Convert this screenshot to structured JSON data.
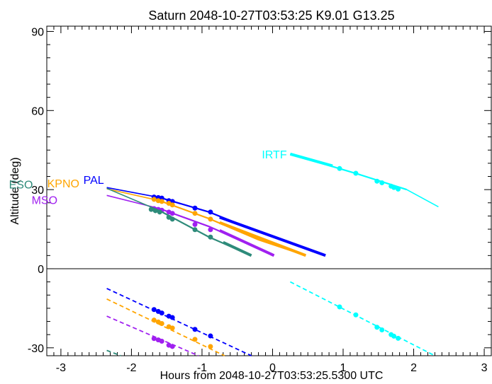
{
  "chart_data": {
    "type": "line",
    "title": "Saturn 2048-10-27T03:53:25  K9.01  G13.25",
    "xlabel": "Hours from 2048-10-27T03:53:25.5300 UTC",
    "ylabel": "Altitude (deg)",
    "xlim": [
      -3.2,
      3.1
    ],
    "ylim": [
      -33,
      92
    ],
    "xticks": [
      -3,
      -2,
      -1,
      0,
      1,
      2,
      3
    ],
    "yticks": [
      -30,
      0,
      30,
      60,
      90
    ],
    "zero_line": 0,
    "series": [
      {
        "name": "PAL",
        "color": "#0000ff",
        "thin": [
          [
            -2.35,
            30.8
          ],
          [
            -1.6,
            27.0
          ]
        ],
        "solid": [
          [
            -1.6,
            27.0
          ],
          [
            -0.9,
            21.5
          ],
          [
            -0.2,
            14.0
          ],
          [
            0.75,
            5.0
          ]
        ],
        "solid_thick": [
          [
            -0.75,
            19.5
          ],
          [
            0.75,
            5.0
          ]
        ],
        "dots_above": [
          [
            -1.68,
            27.2
          ],
          [
            -1.62,
            27.0
          ],
          [
            -1.57,
            26.8
          ],
          [
            -1.47,
            25.8
          ],
          [
            -1.42,
            25.5
          ],
          [
            -1.1,
            23.0
          ],
          [
            -0.88,
            21.5
          ]
        ],
        "dashed": [
          [
            -2.35,
            -7.5
          ],
          [
            -0.3,
            -33.0
          ]
        ],
        "dots_below": [
          [
            -1.68,
            -15.5
          ],
          [
            -1.62,
            -16.2
          ],
          [
            -1.57,
            -16.8
          ],
          [
            -1.47,
            -18.0
          ],
          [
            -1.42,
            -18.5
          ],
          [
            -1.1,
            -23.0
          ],
          [
            -0.88,
            -25.5
          ]
        ]
      },
      {
        "name": "KPNO",
        "color": "#ffa500",
        "thin": [
          [
            -2.35,
            30.3
          ],
          [
            -1.6,
            25.8
          ]
        ],
        "solid": [
          [
            -1.6,
            25.8
          ],
          [
            -0.9,
            19.0
          ],
          [
            -0.2,
            11.0
          ],
          [
            0.47,
            5.0
          ]
        ],
        "solid_thick": [
          [
            -0.75,
            17.5
          ],
          [
            0.47,
            5.0
          ]
        ],
        "dots_above": [
          [
            -1.68,
            26.3
          ],
          [
            -1.62,
            25.8
          ],
          [
            -1.57,
            25.5
          ],
          [
            -1.47,
            24.8
          ],
          [
            -1.42,
            24.2
          ],
          [
            -1.1,
            21.0
          ],
          [
            -0.88,
            18.8
          ]
        ],
        "dashed": [
          [
            -2.35,
            -11.5
          ],
          [
            -0.68,
            -33.0
          ]
        ],
        "dots_below": [
          [
            -1.68,
            -19.5
          ],
          [
            -1.62,
            -20.2
          ],
          [
            -1.57,
            -20.8
          ],
          [
            -1.47,
            -22.0
          ],
          [
            -1.42,
            -22.5
          ],
          [
            -1.1,
            -26.8
          ],
          [
            -0.88,
            -29.5
          ]
        ]
      },
      {
        "name": "MSO",
        "color": "#a020f0",
        "thin": [
          [
            -2.35,
            27.8
          ],
          [
            -1.6,
            22.8
          ]
        ],
        "solid": [
          [
            -1.6,
            22.8
          ],
          [
            -0.9,
            16.0
          ],
          [
            0.02,
            5.0
          ]
        ],
        "solid_thick": [
          [
            -0.75,
            14.5
          ],
          [
            0.02,
            5.0
          ]
        ],
        "dots_above": [
          [
            -1.68,
            22.8
          ],
          [
            -1.62,
            22.5
          ],
          [
            -1.57,
            22.2
          ],
          [
            -1.47,
            21.5
          ],
          [
            -1.42,
            21.0
          ],
          [
            -1.1,
            16.8
          ],
          [
            -0.88,
            14.8
          ]
        ],
        "dashed": [
          [
            -2.35,
            -18.0
          ],
          [
            -1.05,
            -33.0
          ]
        ],
        "dots_below": [
          [
            -1.68,
            -26.5
          ],
          [
            -1.62,
            -27.0
          ],
          [
            -1.57,
            -27.5
          ],
          [
            -1.47,
            -29.0
          ],
          [
            -1.42,
            -29.5
          ]
        ]
      },
      {
        "name": "ESO",
        "color": "#2e8b7a",
        "thin": [
          [
            -2.35,
            30.5
          ],
          [
            -1.6,
            22.0
          ]
        ],
        "solid": [
          [
            -1.6,
            22.0
          ],
          [
            -0.9,
            12.0
          ],
          [
            -0.3,
            5.0
          ]
        ],
        "solid_thick": [
          [
            -0.7,
            10.0
          ],
          [
            -0.3,
            5.0
          ]
        ],
        "dots_above": [
          [
            -1.72,
            22.5
          ],
          [
            -1.66,
            22.0
          ],
          [
            -1.6,
            21.5
          ],
          [
            -1.47,
            19.5
          ],
          [
            -1.42,
            18.8
          ],
          [
            -1.1,
            14.8
          ],
          [
            -0.88,
            12.0
          ]
        ],
        "dashed": [
          [
            -2.35,
            -31.0
          ],
          [
            -2.15,
            -33.0
          ]
        ],
        "dots_below": []
      },
      {
        "name": "IRTF",
        "color": "#00ffff",
        "thin": [
          [
            1.9,
            30.0
          ],
          [
            2.35,
            23.5
          ]
        ],
        "solid": [
          [
            0.25,
            43.5
          ],
          [
            1.2,
            36.0
          ],
          [
            1.9,
            30.0
          ]
        ],
        "solid_thick": [
          [
            0.25,
            43.5
          ],
          [
            0.85,
            39.0
          ]
        ],
        "dots_above": [
          [
            0.95,
            38.0
          ],
          [
            1.18,
            36.2
          ],
          [
            1.48,
            33.2
          ],
          [
            1.55,
            32.6
          ],
          [
            1.68,
            31.3
          ],
          [
            1.72,
            30.8
          ],
          [
            1.78,
            30.2
          ]
        ],
        "dashed": [
          [
            0.25,
            -5.0
          ],
          [
            2.3,
            -33.0
          ]
        ],
        "dots_below": [
          [
            0.95,
            -14.5
          ],
          [
            1.18,
            -17.5
          ],
          [
            1.48,
            -22.2
          ],
          [
            1.55,
            -23.2
          ],
          [
            1.68,
            -25.0
          ],
          [
            1.72,
            -25.6
          ],
          [
            1.78,
            -26.4
          ]
        ]
      }
    ]
  }
}
